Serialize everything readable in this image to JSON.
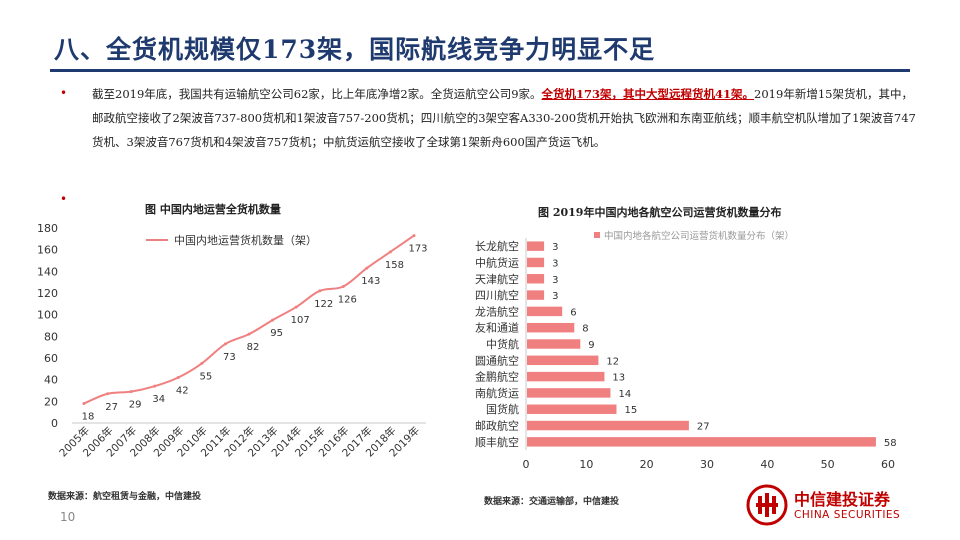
{
  "slide": {
    "title": "八、全货机规模仅173架，国际航线竞争力明显不足",
    "paragraph_normal": "截至2019年底，我国共有运输航空公司62家，比上年底净增2家。全货运航空公司9家。",
    "paragraph_highlight": "全货机173架，其中大型远程货机41架。",
    "paragraph_rest": "2019年新增15架货机，其中，邮政航空接收了2架波音737-800货机和1架波音757-200货机；四川航空的3架空客A330-200货机开始执飞欧洲和东南亚航线；顺丰航空机队增加了1架波音747货机、3架波音767货机和4架波音757货机；中航货运航空接收了全球第1架新舟600国产货运飞机。",
    "bullet_symbol": "•",
    "page_number": "10"
  },
  "left_chart": {
    "heading": "图  中国内地运营全货机数量",
    "source": "数据来源：航空租赁与金融，中信建投"
  },
  "right_chart": {
    "heading": "图  2019年中国内地各航空公司运营货机数量分布",
    "source": "数据来源：交通运输部，中信建投"
  },
  "logo": {
    "name_cn": "中信建投证券",
    "name_en": "CHINA SECURITIES"
  },
  "colors": {
    "title": "#1f3a6e",
    "accent_red": "#c00000",
    "series": "#f08080"
  },
  "chart_data": [
    {
      "type": "line",
      "x": [
        "2005年",
        "2006年",
        "2007年",
        "2008年",
        "2009年",
        "2010年",
        "2011年",
        "2012年",
        "2013年",
        "2014年",
        "2015年",
        "2016年",
        "2017年",
        "2018年",
        "2019年"
      ],
      "series": [
        {
          "name": "中国内地运营货机数量（架）",
          "values": [
            18,
            27,
            29,
            34,
            42,
            55,
            73,
            82,
            95,
            107,
            122,
            126,
            143,
            158,
            173
          ]
        }
      ],
      "yticks": [
        0,
        20,
        40,
        60,
        80,
        100,
        120,
        140,
        160,
        180
      ],
      "ylim": [
        0,
        180
      ],
      "legend": "top-left",
      "grid": false
    },
    {
      "type": "bar",
      "orientation": "horizontal",
      "categories": [
        "长龙航空",
        "中航货运",
        "天津航空",
        "四川航空",
        "龙浩航空",
        "友和通道",
        "中货航",
        "圆通航空",
        "金鹏航空",
        "南航货运",
        "国货航",
        "邮政航空",
        "顺丰航空"
      ],
      "series": [
        {
          "name": "中国内地各航空公司运营货机数量分布（架）",
          "values": [
            3,
            3,
            3,
            3,
            6,
            8,
            9,
            12,
            13,
            14,
            15,
            27,
            58
          ]
        }
      ],
      "xticks": [
        0,
        10,
        20,
        30,
        40,
        50,
        60
      ],
      "xlim": [
        0,
        60
      ],
      "legend": "top",
      "grid": false
    }
  ]
}
